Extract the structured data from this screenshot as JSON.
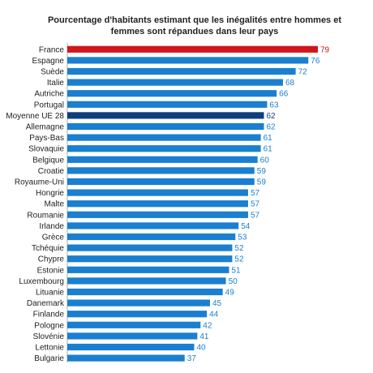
{
  "chart_data": {
    "type": "bar",
    "orientation": "horizontal",
    "title": "Pourcentage d'habitants estimant que les inégalités entre hommes et femmes sont répandues dans leur pays",
    "categories": [
      "France",
      "Espagne",
      "Suède",
      "Italie",
      "Autriche",
      "Portugal",
      "Moyenne UE 28",
      "Allemagne",
      "Pays-Bas",
      "Slovaquie",
      "Belgique",
      "Croatie",
      "Royaume-Uni",
      "Hongrie",
      "Malte",
      "Roumanie",
      "Irlande",
      "Grèce",
      "Tchéquie",
      "Chypre",
      "Estonie",
      "Luxembourg",
      "Lituanie",
      "Danemark",
      "Finlande",
      "Pologne",
      "Slovénie",
      "Lettonie",
      "Bulgarie"
    ],
    "values": [
      79,
      76,
      72,
      68,
      66,
      63,
      62,
      62,
      61,
      61,
      60,
      59,
      59,
      57,
      57,
      57,
      54,
      53,
      52,
      52,
      51,
      50,
      49,
      45,
      44,
      42,
      41,
      40,
      37
    ],
    "xlim": [
      0,
      80
    ],
    "grid": false,
    "colors": {
      "default": "#1a7fd0",
      "France": "#d0161c",
      "Moyenne UE 28": "#0f3f7d",
      "default_label": "#1a7fd0",
      "France_label": "#d0161c",
      "Moyenne UE 28_label": "#1a3f7d"
    }
  }
}
